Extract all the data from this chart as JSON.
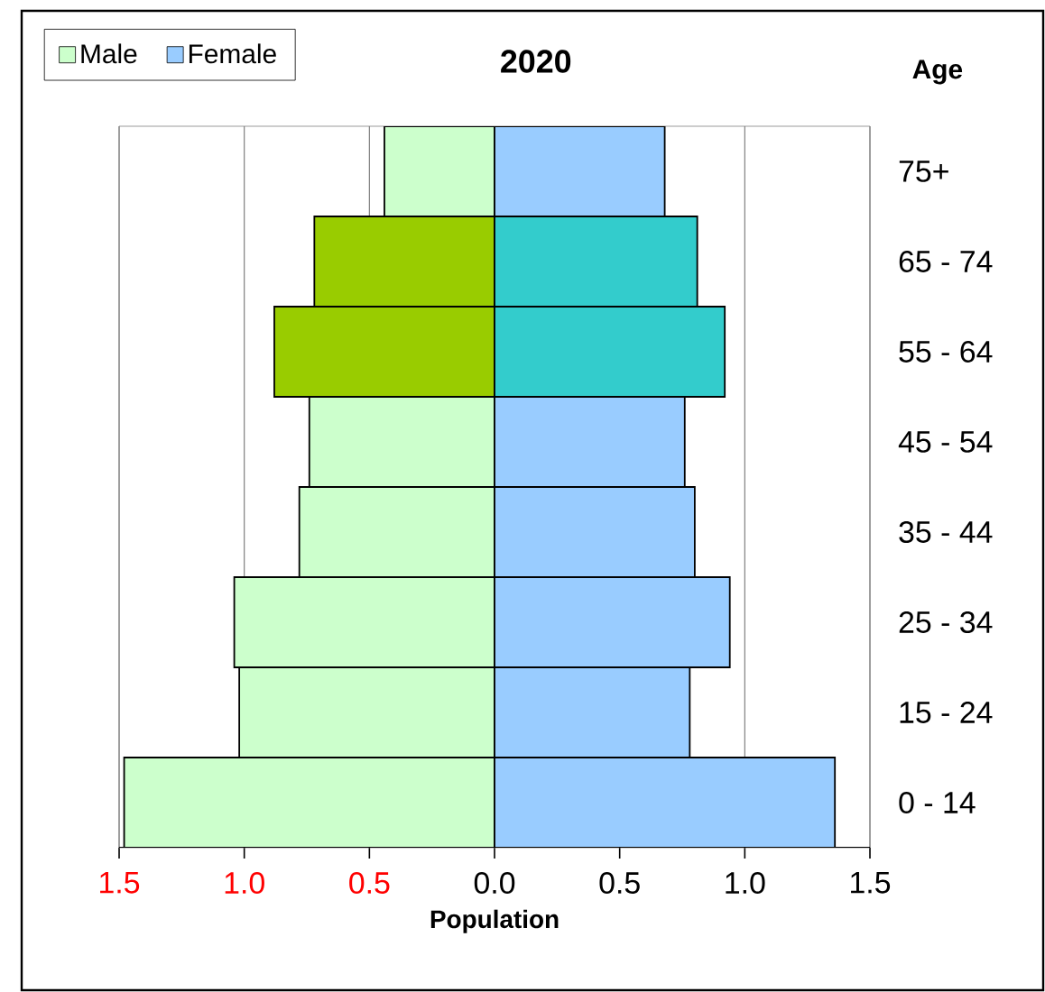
{
  "chart_data": {
    "type": "bar",
    "orientation": "horizontal",
    "title": "2020",
    "xlabel": "Population",
    "ylabel": "Age",
    "categories": [
      "75+",
      "65 - 74",
      "55 - 64",
      "45 - 54",
      "35 - 44",
      "25 - 34",
      "15 - 24",
      "0 - 14"
    ],
    "series": [
      {
        "name": "Male",
        "color": "#ccffcc",
        "colors": [
          "#ccffcc",
          "#99cc00",
          "#99cc00",
          "#ccffcc",
          "#ccffcc",
          "#ccffcc",
          "#ccffcc",
          "#ccffcc"
        ],
        "values": [
          -0.44,
          -0.72,
          -0.88,
          -0.74,
          -0.78,
          -1.04,
          -1.02,
          -1.48
        ]
      },
      {
        "name": "Female",
        "color": "#99ccff",
        "colors": [
          "#99ccff",
          "#33cccc",
          "#33cccc",
          "#99ccff",
          "#99ccff",
          "#99ccff",
          "#99ccff",
          "#99ccff"
        ],
        "values": [
          0.68,
          0.81,
          0.92,
          0.76,
          0.8,
          0.94,
          0.78,
          1.36
        ]
      }
    ],
    "xlim": [
      -1.5,
      1.5
    ],
    "xticks": [
      {
        "value": -1.5,
        "label": "1.5"
      },
      {
        "value": -1.0,
        "label": "1.0"
      },
      {
        "value": -0.5,
        "label": "0.5"
      },
      {
        "value": 0,
        "label": "0.0"
      },
      {
        "value": 0.5,
        "label": "0.5"
      },
      {
        "value": 1,
        "label": "1.0"
      },
      {
        "value": 1.5,
        "label": "1.5"
      }
    ],
    "stacked": true,
    "grid": "x",
    "legend": "top left"
  }
}
